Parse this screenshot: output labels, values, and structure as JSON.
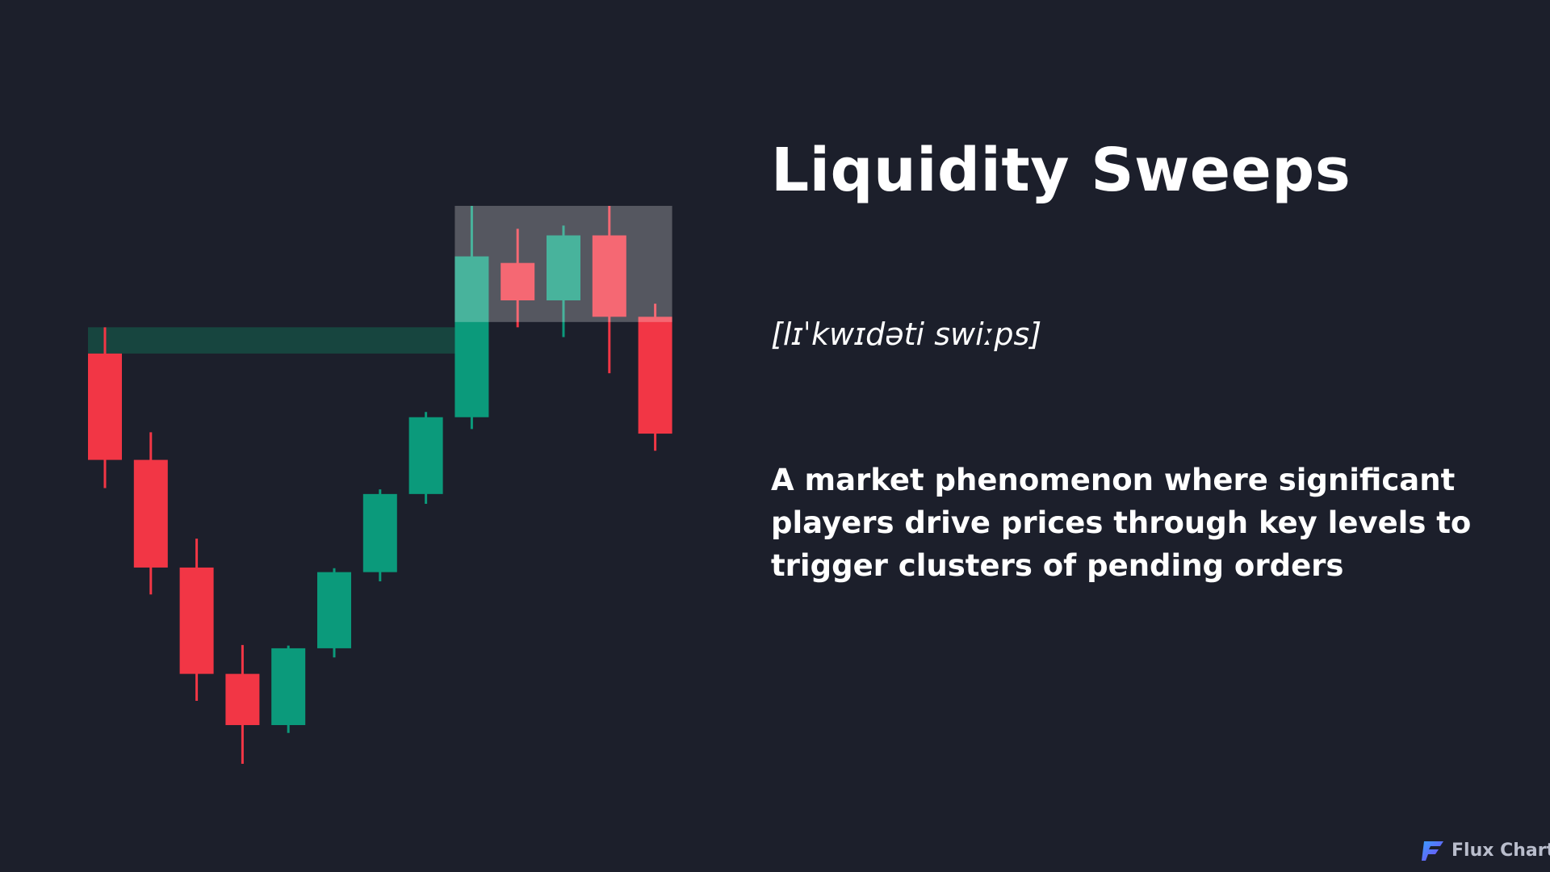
{
  "title": "Liquidity Sweeps",
  "phonetic": "[lɪˈkwɪdəti swiːps]",
  "description": "A market phenomenon where significant players drive prices through key levels to trigger clusters of pending orders",
  "brand": {
    "name": "Flux Charts",
    "icon": "flux-logo-icon"
  },
  "colors": {
    "background": "#1c1f2b",
    "bullish": "#0b9a7b",
    "bearish": "#f23645",
    "liquidity_zone": "#17453f",
    "sweep_zone": "#5b5e68"
  },
  "chart_data": {
    "type": "candlestick",
    "title": "",
    "xlabel": "",
    "ylabel": "",
    "grid": false,
    "ylim": [
      0,
      100
    ],
    "candles": [
      {
        "open": 62.5,
        "high": 66.5,
        "low": 42.0,
        "close": 46.3
      },
      {
        "open": 46.3,
        "high": 50.5,
        "low": 25.8,
        "close": 29.9
      },
      {
        "open": 29.9,
        "high": 34.3,
        "low": 9.6,
        "close": 13.7
      },
      {
        "open": 13.7,
        "high": 18.1,
        "low": 0.0,
        "close": 5.9
      },
      {
        "open": 5.9,
        "high": 18.0,
        "low": 4.7,
        "close": 17.6
      },
      {
        "open": 17.6,
        "high": 29.8,
        "low": 16.2,
        "close": 29.2
      },
      {
        "open": 29.2,
        "high": 41.8,
        "low": 27.8,
        "close": 41.1
      },
      {
        "open": 41.1,
        "high": 53.6,
        "low": 39.6,
        "close": 52.8
      },
      {
        "open": 52.8,
        "high": 85.0,
        "low": 51.0,
        "close": 77.3
      },
      {
        "open": 76.3,
        "high": 81.5,
        "low": 66.5,
        "close": 70.6
      },
      {
        "open": 70.6,
        "high": 82.0,
        "low": 65.0,
        "close": 80.5
      },
      {
        "open": 80.5,
        "high": 85.0,
        "low": 59.5,
        "close": 68.1
      },
      {
        "open": 68.1,
        "high": 70.1,
        "low": 47.7,
        "close": 50.3
      }
    ],
    "zones": [
      {
        "name": "liquidity-level",
        "from_index": 0,
        "to_index": 8,
        "low": 62.5,
        "high": 66.5
      },
      {
        "name": "sweep-area",
        "from_index": 8,
        "to_index": 12,
        "low": 67.3,
        "high": 85.0
      }
    ]
  }
}
